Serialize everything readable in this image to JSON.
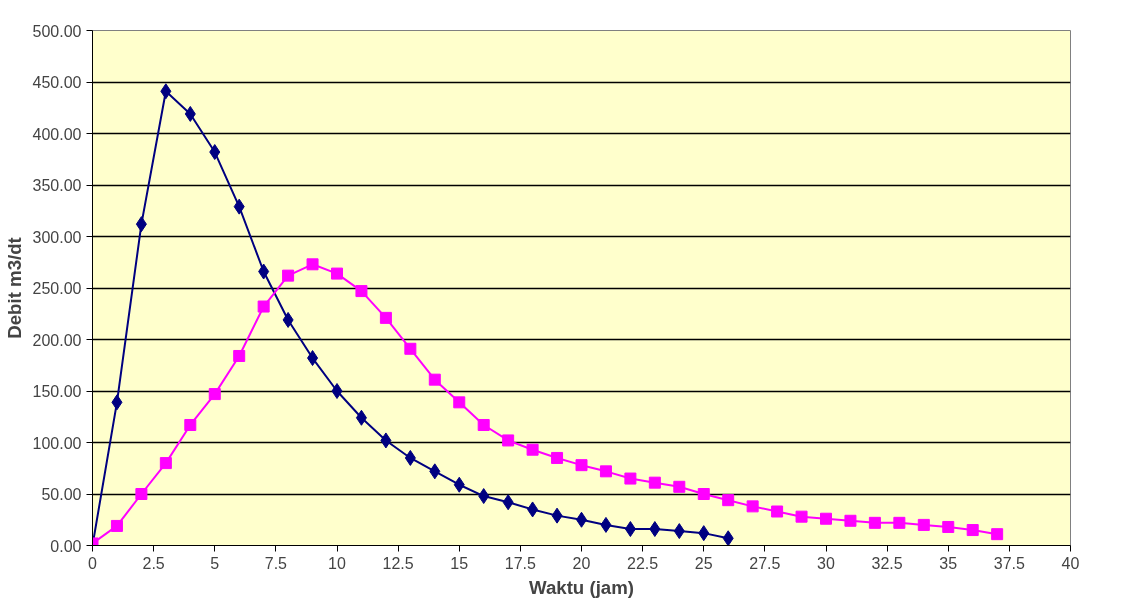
{
  "chart_data": {
    "type": "line",
    "xlabel": "Waktu (jam)",
    "ylabel": "Debit m3/dt",
    "xlim": [
      0,
      40
    ],
    "xticks": [
      0,
      2.5,
      5,
      7.5,
      10,
      12.5,
      15,
      17.5,
      20,
      22.5,
      25,
      27.5,
      30,
      32.5,
      35,
      37.5,
      40
    ],
    "ylim": [
      0,
      500
    ],
    "yticks": [
      {
        "value": 0,
        "label": "0.00"
      },
      {
        "value": 50,
        "label": "50.00"
      },
      {
        "value": 100,
        "label": "100.00"
      },
      {
        "value": 150,
        "label": "150.00"
      },
      {
        "value": 200,
        "label": "200.00"
      },
      {
        "value": 250,
        "label": "250.00"
      },
      {
        "value": 300,
        "label": "300.00"
      },
      {
        "value": 350,
        "label": "350.00"
      },
      {
        "value": 400,
        "label": "400.00"
      },
      {
        "value": 450,
        "label": "450.00"
      },
      {
        "value": 500,
        "label": "500.00"
      }
    ],
    "grid": "y",
    "series": [
      {
        "color": "#000080",
        "marker": "diamond",
        "x": [
          0,
          1,
          2,
          3,
          4,
          5,
          6,
          7,
          8,
          9,
          10,
          11,
          12,
          13,
          14,
          15,
          16,
          17,
          18,
          19,
          20,
          21,
          22,
          23,
          24,
          25,
          26
        ],
        "values": [
          0,
          139,
          312,
          441,
          419,
          382,
          329,
          266,
          219,
          182,
          150,
          124,
          102,
          85,
          72,
          59,
          48,
          42,
          35,
          29,
          25,
          20,
          16,
          16,
          14,
          12,
          7
        ]
      },
      {
        "color": "#ff00ff",
        "marker": "square",
        "x": [
          0,
          1,
          2,
          3,
          4,
          5,
          6,
          7,
          8,
          9,
          10,
          11,
          12,
          13,
          14,
          15,
          16,
          17,
          18,
          19,
          20,
          21,
          22,
          23,
          24,
          25,
          26,
          27,
          28,
          29,
          30,
          31,
          32,
          33,
          34,
          35,
          36,
          37
        ],
        "values": [
          2,
          19,
          50,
          80,
          117,
          147,
          184,
          232,
          262,
          273,
          264,
          247,
          221,
          191,
          161,
          139,
          117,
          102,
          93,
          85,
          78,
          72,
          65,
          61,
          57,
          50,
          44,
          38,
          33,
          28,
          26,
          24,
          22,
          22,
          20,
          18,
          15,
          11
        ]
      }
    ]
  }
}
